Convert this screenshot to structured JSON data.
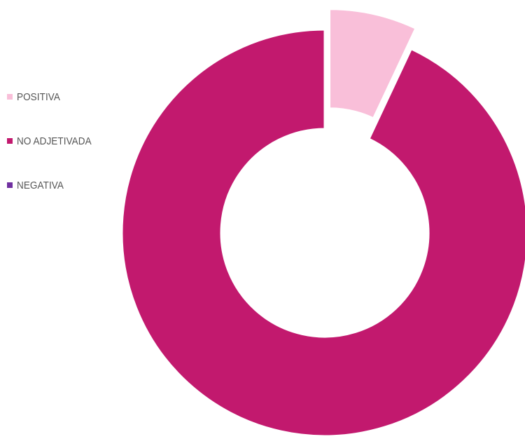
{
  "chart_data": {
    "type": "pie",
    "variant": "donut",
    "title": "",
    "legend_position": "left",
    "categories": [
      "POSITIVA",
      "NO ADJETIVADA",
      "NEGATIVA"
    ],
    "values": [
      7,
      93,
      0
    ],
    "colors": [
      "#f9bfd9",
      "#c2196e",
      "#7030a0"
    ],
    "exploded": [
      "POSITIVA"
    ]
  }
}
